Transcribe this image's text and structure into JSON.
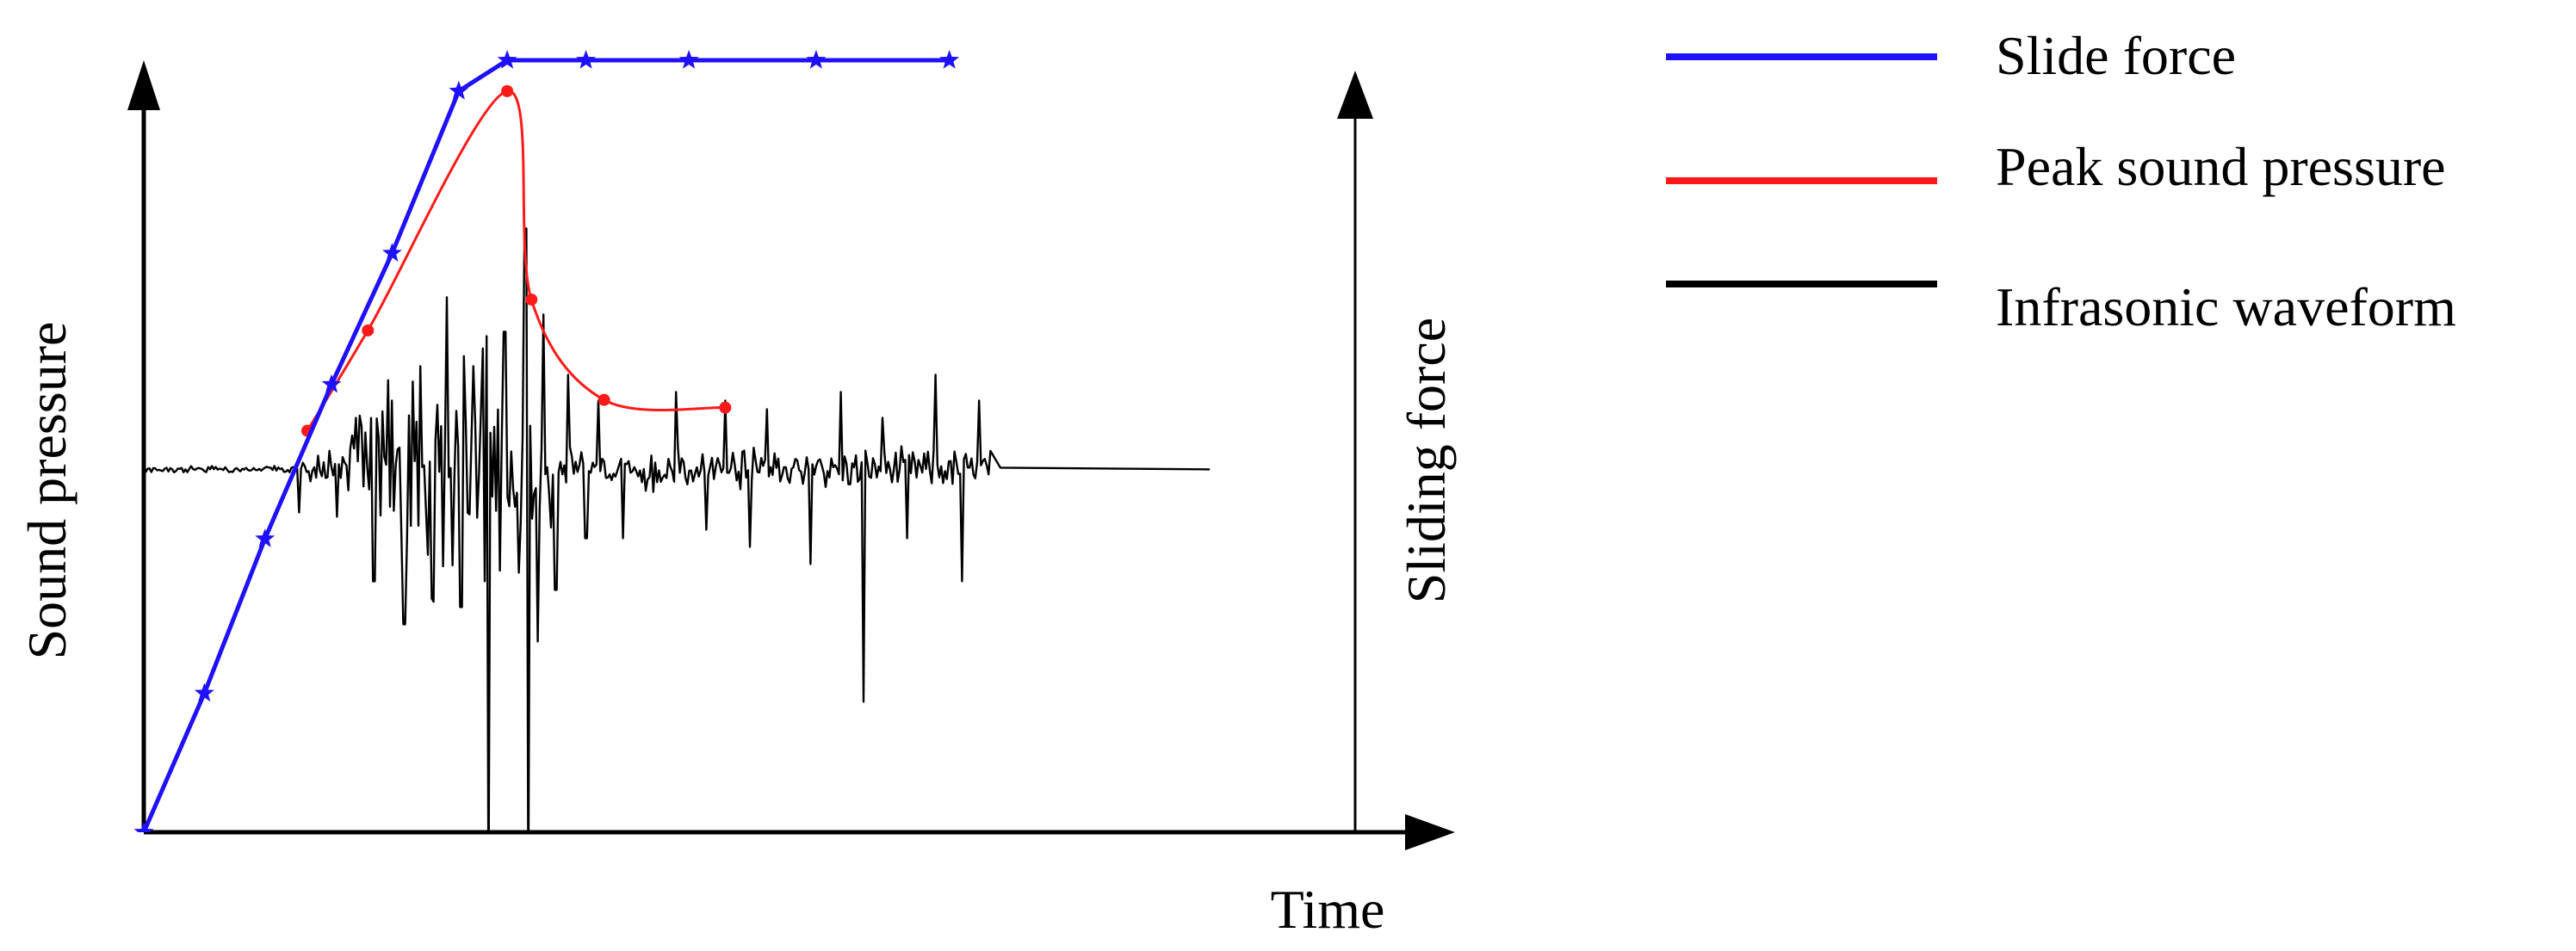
{
  "chart_data": {
    "type": "line",
    "title": "",
    "xlabel": "Time",
    "ylabel_left": "Sound pressure",
    "ylabel_right": "Sliding force",
    "tick_labels": "none",
    "grid": false,
    "legend_position": "right",
    "series": [
      {
        "name": "Slide force",
        "color": "#1f10ff",
        "marker": "star",
        "x": [
          0.0,
          0.05,
          0.1,
          0.155,
          0.205,
          0.26,
          0.3,
          0.365,
          0.45,
          0.555,
          0.665
        ],
        "y": [
          0.0,
          0.18,
          0.38,
          0.58,
          0.75,
          0.96,
          1.0,
          1.0,
          1.0,
          1.0,
          1.0
        ]
      },
      {
        "name": "Peak sound pressure",
        "color": "#ff1a1a",
        "marker": "dot",
        "x": [
          0.135,
          0.185,
          0.3,
          0.32,
          0.38,
          0.48
        ],
        "y": [
          0.52,
          0.65,
          0.96,
          0.69,
          0.56,
          0.55
        ]
      },
      {
        "name": "Infrasonic waveform",
        "color": "#000000",
        "marker": "none",
        "baseline": 0.47,
        "x_start": 0.0,
        "x_activity_end": 0.7,
        "x_end": 0.88
      }
    ]
  }
}
